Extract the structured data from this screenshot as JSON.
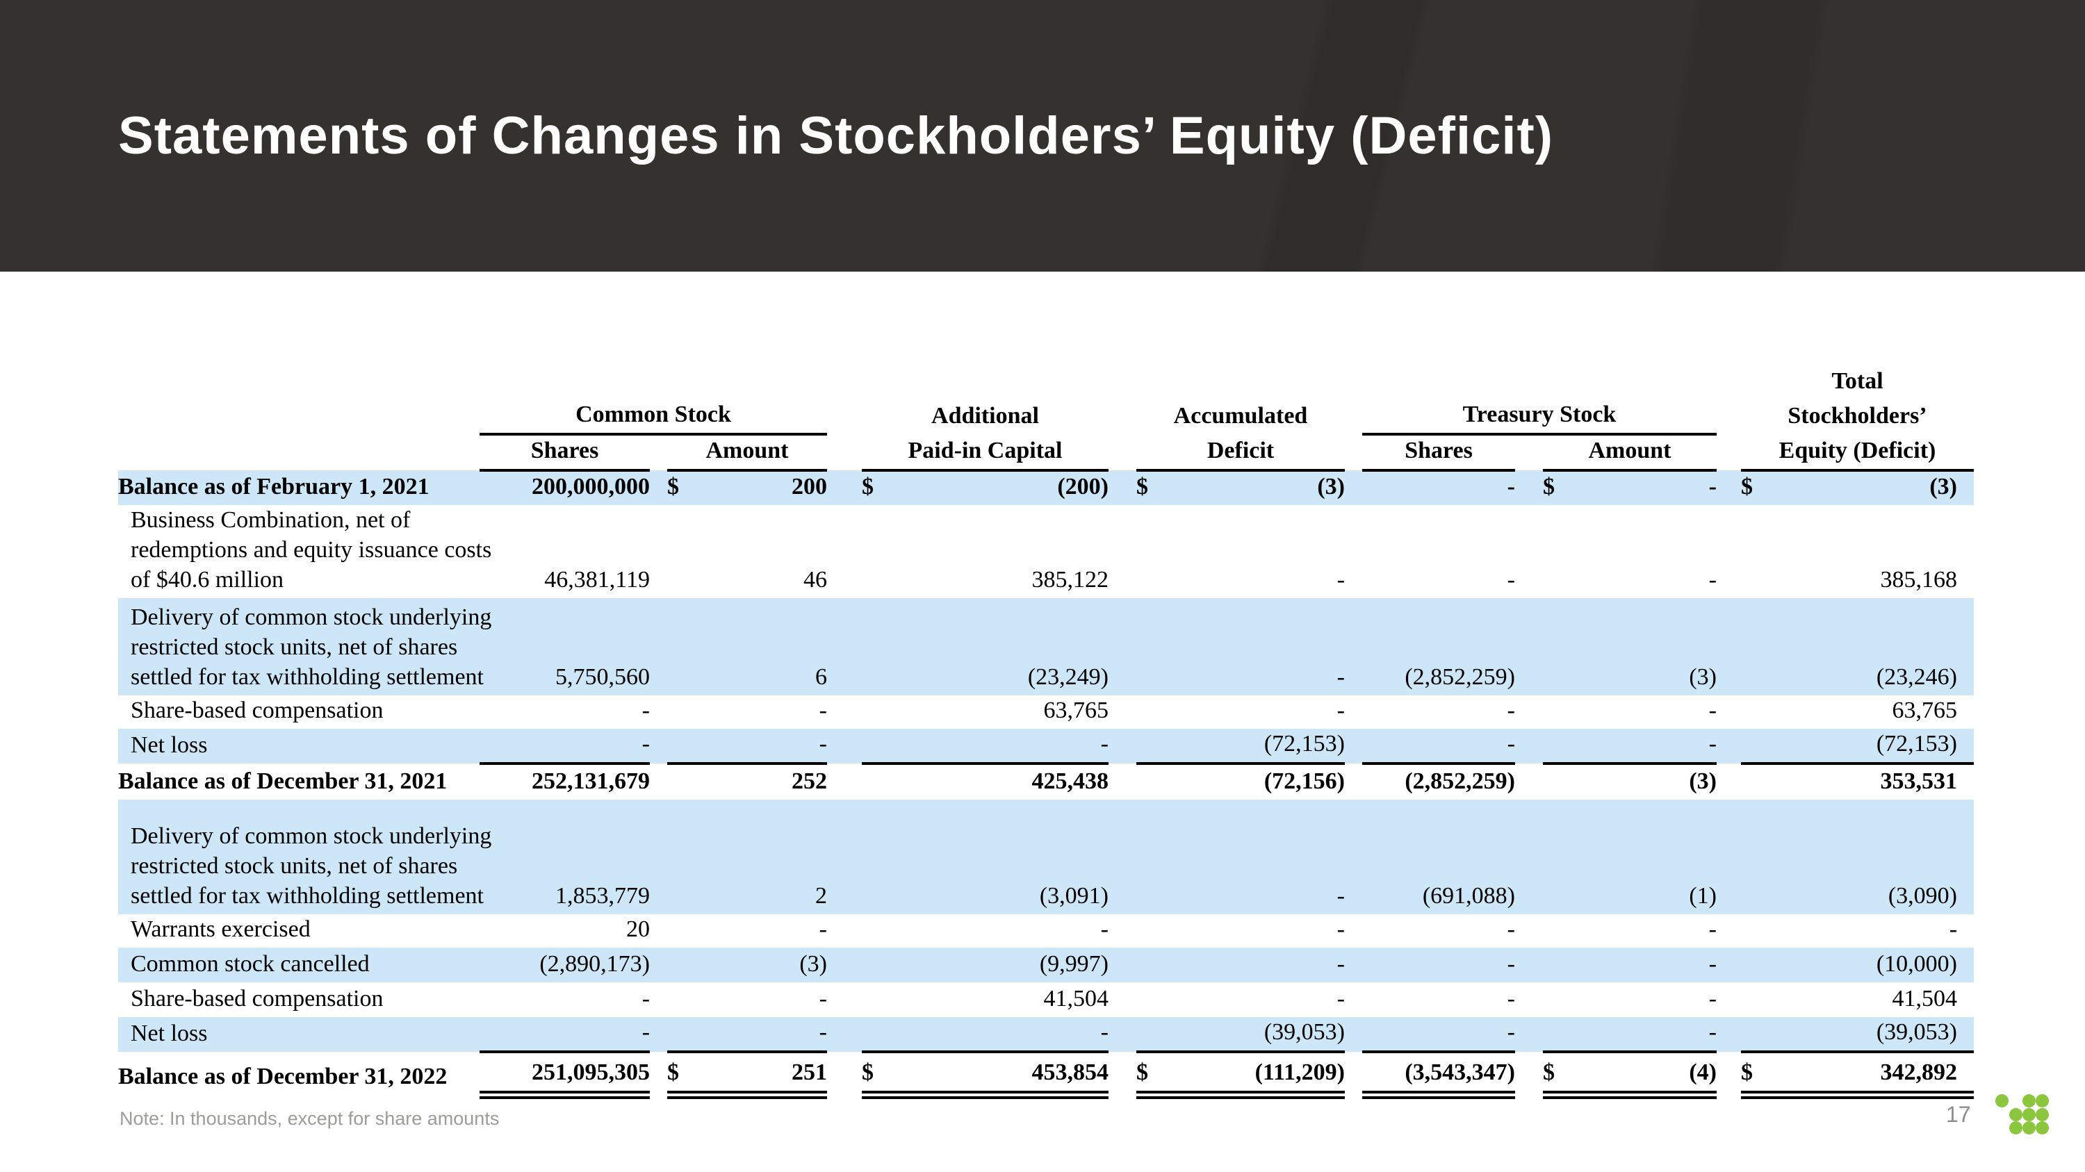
{
  "slide": {
    "title": "Statements of Changes in Stockholders’ Equity (Deficit)",
    "note": "Note: In thousands, except for share amounts",
    "page_number": "17"
  },
  "colors": {
    "header_bg": "#33322E",
    "row_shade_blue": "#CDE7F8",
    "logo_green": "#8CC63E",
    "title_text": "#FFFFFF"
  },
  "logo": {
    "name": "nine-dot-grid-logo"
  },
  "table": {
    "header": {
      "total_line": "Total",
      "common_stock": "Common Stock",
      "additional": "Additional",
      "accumulated": "Accumulated",
      "treasury_stock": "Treasury Stock",
      "stockholders": "Stockholders’",
      "shares1": "Shares",
      "amount1": "Amount",
      "paid_in_capital": "Paid-in Capital",
      "deficit": "Deficit",
      "shares2": "Shares",
      "amount2": "Amount",
      "equity_deficit": "Equity (Deficit)"
    },
    "rows": [
      {
        "label": "Balance as of February 1, 2021",
        "shaded": true,
        "bold": true,
        "rule": "none",
        "cells": [
          "200,000,000",
          "$",
          "200",
          "$",
          "(200)",
          "$",
          "(3)",
          "-",
          "$",
          "-",
          "$",
          "(3)"
        ]
      },
      {
        "label": "Business Combination, net of\nredemptions and equity issuance costs\nof $40.6 million",
        "shaded": false,
        "bold": false,
        "rule": "none",
        "cells": [
          "46,381,119",
          "",
          "46",
          "",
          "385,122",
          "",
          "-",
          "-",
          "",
          "-",
          "",
          "385,168"
        ]
      },
      {
        "label": "Delivery of common stock underlying\nrestricted stock units, net of shares\nsettled for tax withholding settlement",
        "shaded": true,
        "bold": false,
        "rule": "none",
        "cells": [
          "5,750,560",
          "",
          "6",
          "",
          "(23,249)",
          "",
          "-",
          "(2,852,259)",
          "",
          "(3)",
          "",
          "(23,246)"
        ]
      },
      {
        "label": "Share-based compensation",
        "shaded": false,
        "bold": false,
        "rule": "none",
        "cells": [
          "-",
          "",
          "-",
          "",
          "63,765",
          "",
          "-",
          "-",
          "",
          "-",
          "",
          "63,765"
        ]
      },
      {
        "label": "Net loss",
        "shaded": true,
        "bold": false,
        "rule": "single",
        "cells": [
          "-",
          "",
          "-",
          "",
          "-",
          "",
          "(72,153)",
          "-",
          "",
          "-",
          "",
          "(72,153)"
        ]
      },
      {
        "label": "Balance as of December 31, 2021",
        "shaded": false,
        "bold": true,
        "rule": "none",
        "cells": [
          "252,131,679",
          "",
          "252",
          "",
          "425,438",
          "",
          "(72,156)",
          "(2,852,259)",
          "",
          "(3)",
          "",
          "353,531"
        ]
      },
      {
        "label": "Delivery of common stock underlying\nrestricted stock units, net of shares\nsettled for tax withholding settlement",
        "shaded": true,
        "bold": false,
        "rule": "none",
        "cells": [
          "1,853,779",
          "",
          "2",
          "",
          "(3,091)",
          "",
          "-",
          "(691,088)",
          "",
          "(1)",
          "",
          "(3,090)"
        ]
      },
      {
        "label": "Warrants exercised",
        "shaded": false,
        "bold": false,
        "rule": "none",
        "cells": [
          "20",
          "",
          "-",
          "",
          "-",
          "",
          "-",
          "-",
          "",
          "-",
          "",
          "-"
        ]
      },
      {
        "label": "Common stock cancelled",
        "shaded": true,
        "bold": false,
        "rule": "none",
        "cells": [
          "(2,890,173)",
          "",
          "(3)",
          "",
          "(9,997)",
          "",
          "-",
          "-",
          "",
          "-",
          "",
          "(10,000)"
        ]
      },
      {
        "label": "Share-based compensation",
        "shaded": false,
        "bold": false,
        "rule": "none",
        "cells": [
          "-",
          "",
          "-",
          "",
          "41,504",
          "",
          "-",
          "-",
          "",
          "-",
          "",
          "41,504"
        ]
      },
      {
        "label": "Net loss",
        "shaded": true,
        "bold": false,
        "rule": "single",
        "cells": [
          "-",
          "",
          "-",
          "",
          "-",
          "",
          "(39,053)",
          "-",
          "",
          "-",
          "",
          "(39,053)"
        ]
      },
      {
        "label": "Balance as of December 31, 2022",
        "shaded": false,
        "bold": true,
        "rule": "double",
        "cells": [
          "251,095,305",
          "$",
          "251",
          "$",
          "453,854",
          "$",
          "(111,209)",
          "(3,543,347)",
          "$",
          "(4)",
          "$",
          "342,892"
        ]
      }
    ]
  }
}
